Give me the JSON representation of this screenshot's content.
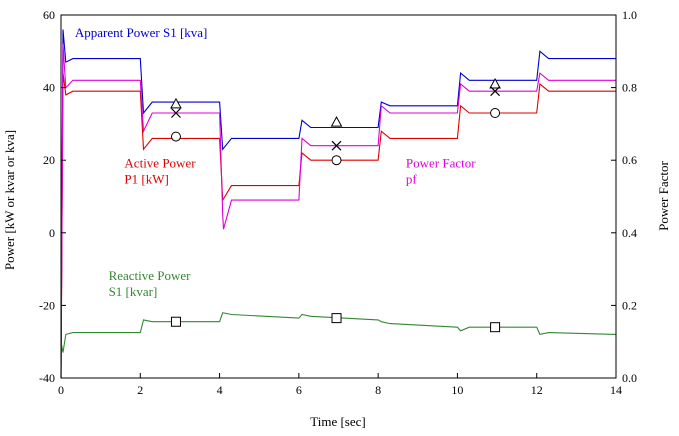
{
  "chart_data": {
    "type": "line",
    "xlabel": "Time [sec]",
    "ylabel_left": "Power [kW or kvar or kva]",
    "ylabel_right": "Power Factor",
    "xlim": [
      0,
      14
    ],
    "ylim_left": [
      -40,
      60
    ],
    "ylim_right": [
      0.0,
      1.0
    ],
    "x_ticks": [
      "0",
      "2",
      "4",
      "6",
      "8",
      "10",
      "12",
      "14"
    ],
    "y_left_ticks": [
      "60",
      "40",
      "20",
      "0",
      "-20",
      "-40"
    ],
    "y_right_ticks": [
      "1.0",
      "0.8",
      "0.6",
      "0.4",
      "0.2",
      "0.0"
    ],
    "grid": false,
    "series": [
      {
        "name": "Apparent Power S1 [kva]",
        "axis": "left",
        "color": "#0000cc",
        "marker": "triangle",
        "x": [
          0,
          0.05,
          0.12,
          0.3,
          2.0,
          2.08,
          2.3,
          4.0,
          4.08,
          4.3,
          6.0,
          6.08,
          6.3,
          8.0,
          8.08,
          8.3,
          10.0,
          10.08,
          10.3,
          12.0,
          12.08,
          12.3,
          14.0
        ],
        "y": [
          -40,
          56,
          47,
          48,
          48,
          33,
          36,
          36,
          23,
          26,
          26,
          31,
          29,
          29,
          36,
          35,
          35,
          44,
          42,
          42,
          50,
          48,
          48
        ]
      },
      {
        "name": "Active Power P1 [kW]",
        "axis": "left",
        "color": "#dd0000",
        "marker": "circle",
        "x": [
          0,
          0.05,
          0.12,
          0.3,
          2.0,
          2.08,
          2.3,
          4.0,
          4.08,
          4.3,
          6.0,
          6.08,
          6.3,
          8.0,
          8.08,
          8.3,
          10.0,
          10.08,
          10.3,
          12.0,
          12.08,
          12.3,
          14.0
        ],
        "y": [
          -40,
          44,
          38,
          39,
          39,
          23,
          26,
          26,
          9,
          13,
          13,
          22,
          20,
          20,
          28,
          26,
          26,
          35,
          33,
          33,
          41,
          39,
          39
        ]
      },
      {
        "name": "Power Factor pf",
        "axis": "right",
        "color": "#dd00dd",
        "marker": "x",
        "x": [
          0,
          0.05,
          0.12,
          0.3,
          2.0,
          2.08,
          2.3,
          4.0,
          4.08,
          4.1,
          4.3,
          6.0,
          6.08,
          6.3,
          8.0,
          8.08,
          8.3,
          10.0,
          10.08,
          10.3,
          12.0,
          12.08,
          12.3,
          14.0
        ],
        "y": [
          0.0,
          0.92,
          0.8,
          0.82,
          0.82,
          0.68,
          0.73,
          0.73,
          0.45,
          0.41,
          0.49,
          0.49,
          0.66,
          0.64,
          0.64,
          0.75,
          0.73,
          0.73,
          0.81,
          0.79,
          0.79,
          0.84,
          0.82,
          0.82
        ]
      },
      {
        "name": "Reactive Power S1 [kvar]",
        "axis": "left",
        "color": "#338833",
        "marker": "square",
        "x": [
          0,
          0.05,
          0.12,
          0.3,
          2.0,
          2.08,
          2.3,
          4.0,
          4.08,
          4.3,
          6.0,
          6.08,
          6.3,
          8.0,
          8.08,
          8.3,
          10.0,
          10.08,
          10.3,
          12.0,
          12.08,
          12.3,
          14.0
        ],
        "y": [
          -30,
          -33,
          -28,
          -27.5,
          -27.5,
          -24,
          -24.5,
          -24.5,
          -22,
          -22.5,
          -23.5,
          -22.5,
          -23,
          -24,
          -24.5,
          -25,
          -26,
          -27,
          -26,
          -26,
          -28,
          -27.5,
          -28
        ]
      }
    ],
    "markers": [
      {
        "series": "Apparent Power S1 [kva]",
        "x": [
          2.9,
          6.95,
          10.95
        ],
        "y": [
          35.5,
          30.5,
          41
        ]
      },
      {
        "series": "Power Factor pf",
        "x": [
          2.9,
          6.95,
          10.95
        ],
        "y": [
          0.73,
          0.64,
          0.79
        ]
      },
      {
        "series": "Active Power P1 [kW]",
        "x": [
          2.9,
          6.95,
          10.95
        ],
        "y": [
          26.5,
          20,
          33
        ]
      },
      {
        "series": "Reactive Power S1 [kvar]",
        "x": [
          2.9,
          6.95,
          10.95
        ],
        "y": [
          -24.5,
          -23.5,
          -26
        ]
      }
    ],
    "annotations": [
      {
        "lines": [
          "Apparent Power  S1 [kva]"
        ],
        "color": "#0000cc",
        "x": 0.35,
        "y": 54
      },
      {
        "lines": [
          "Active Power",
          "P1 [kW]"
        ],
        "color": "#dd0000",
        "x": 1.6,
        "y": 18
      },
      {
        "lines": [
          "Power Factor",
          "pf"
        ],
        "color": "#dd00dd",
        "x": 8.7,
        "y": 18
      },
      {
        "lines": [
          "Reactive Power",
          "S1 [kvar]"
        ],
        "color": "#338833",
        "x": 1.2,
        "y": -13
      }
    ]
  }
}
